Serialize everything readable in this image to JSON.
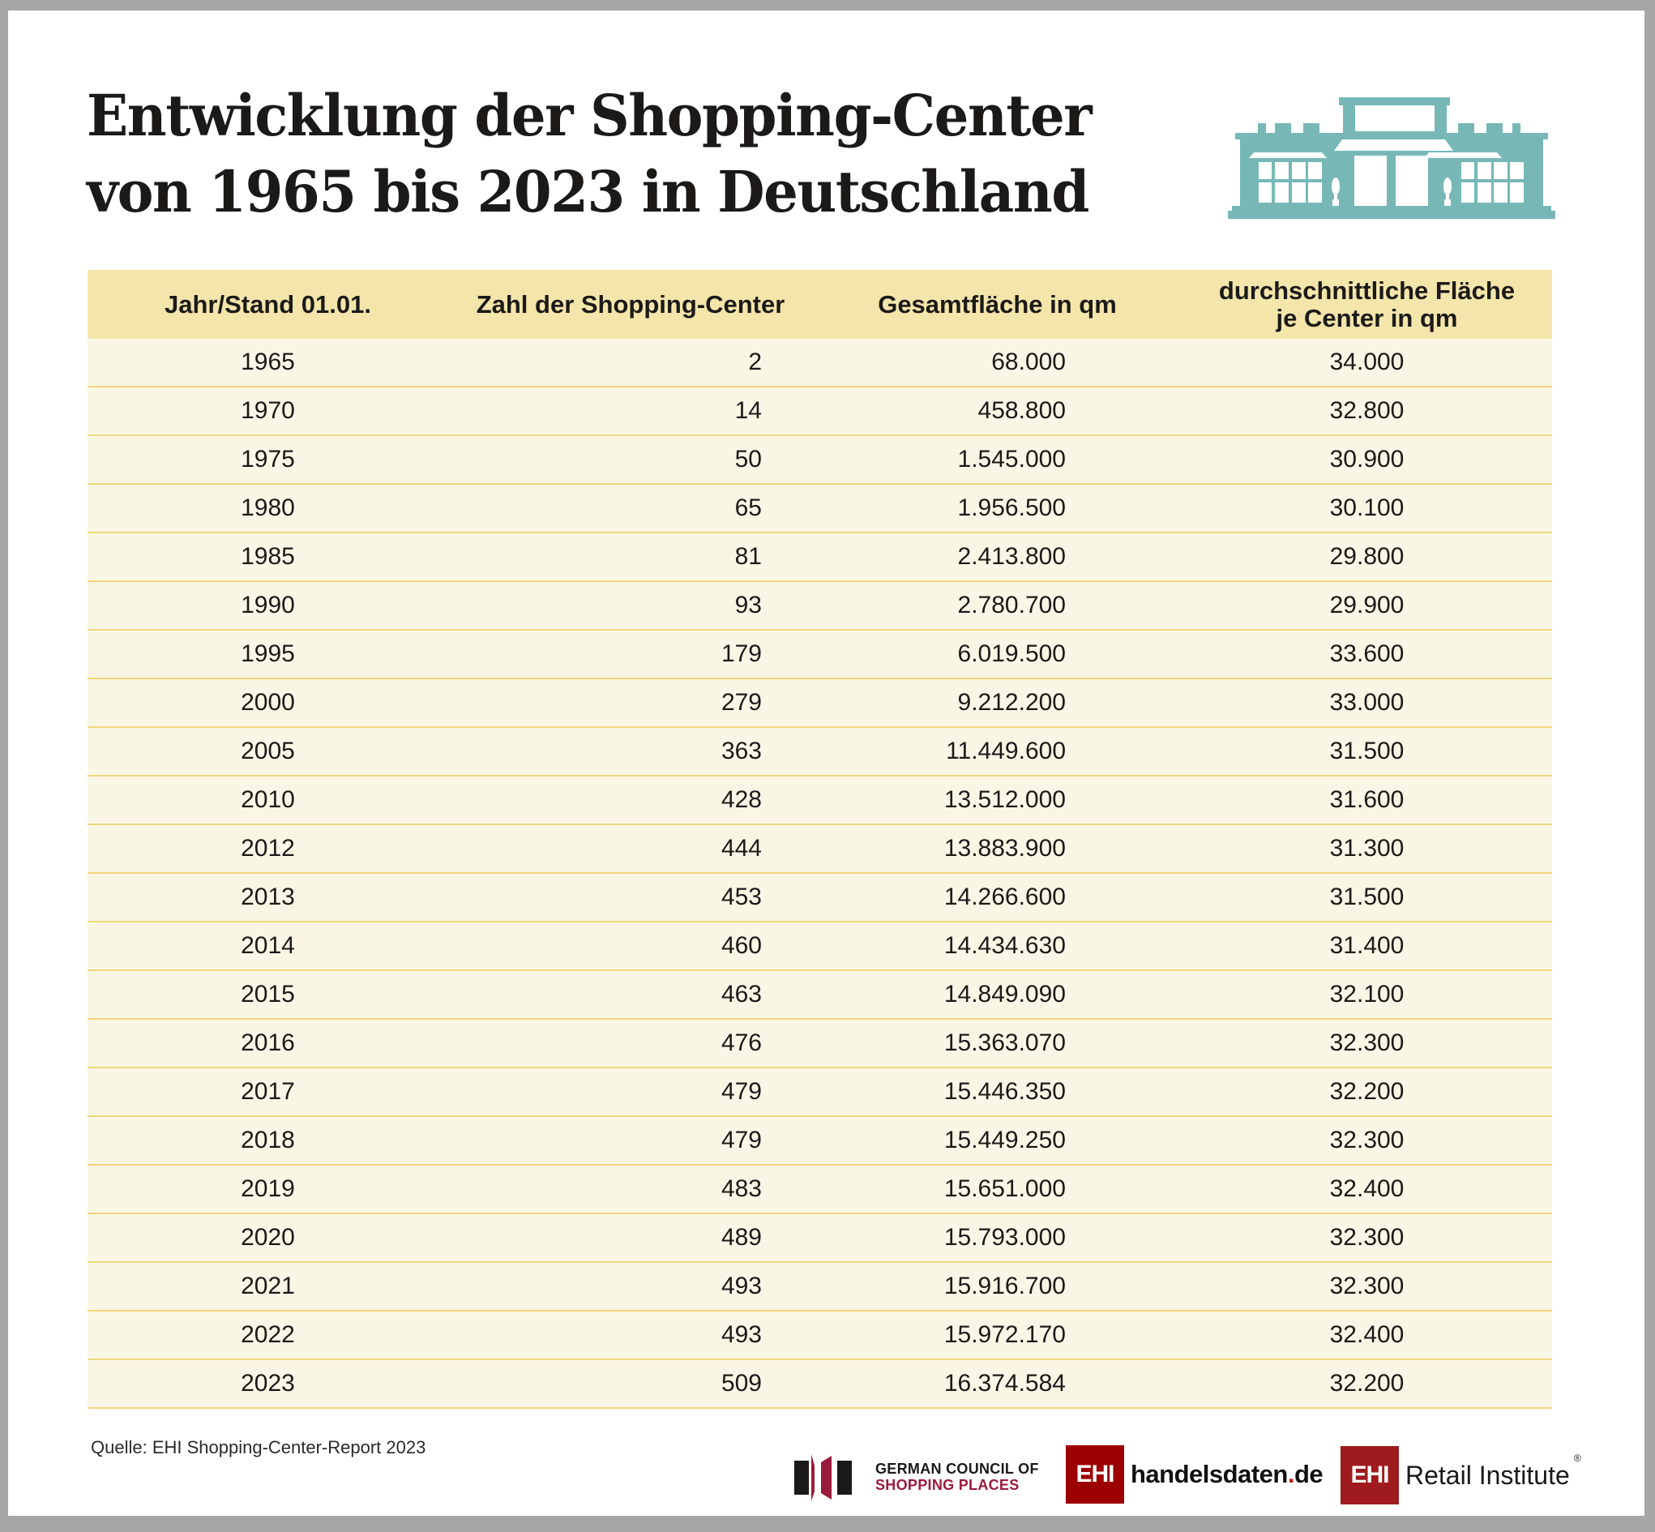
{
  "title": {
    "line1": "Entwicklung der Shopping-Center",
    "line2": "von 1965 bis 2023 in Deutschland"
  },
  "icons": {
    "header_icon": "shopping-mall-building-icon",
    "header_icon_color": "#77b8b7"
  },
  "colors": {
    "header_bg": "#f4e5ab",
    "row_bg": "#faf6e6",
    "row_divider": "#f0d77c",
    "frame": "#a5a6a5"
  },
  "table": {
    "headers": {
      "year": "Jahr/Stand 01.01.",
      "count": "Zahl der Shopping-Center",
      "total_area": "Gesamtfläche in qm",
      "avg_area_line1": "durchschnittliche Fläche",
      "avg_area_line2": "je Center in qm"
    },
    "rows": [
      {
        "year": "1965",
        "count": "2",
        "total_area": "68.000",
        "avg_area": "34.000"
      },
      {
        "year": "1970",
        "count": "14",
        "total_area": "458.800",
        "avg_area": "32.800"
      },
      {
        "year": "1975",
        "count": "50",
        "total_area": "1.545.000",
        "avg_area": "30.900"
      },
      {
        "year": "1980",
        "count": "65",
        "total_area": "1.956.500",
        "avg_area": "30.100"
      },
      {
        "year": "1985",
        "count": "81",
        "total_area": "2.413.800",
        "avg_area": "29.800"
      },
      {
        "year": "1990",
        "count": "93",
        "total_area": "2.780.700",
        "avg_area": "29.900"
      },
      {
        "year": "1995",
        "count": "179",
        "total_area": "6.019.500",
        "avg_area": "33.600"
      },
      {
        "year": "2000",
        "count": "279",
        "total_area": "9.212.200",
        "avg_area": "33.000"
      },
      {
        "year": "2005",
        "count": "363",
        "total_area": "11.449.600",
        "avg_area": "31.500"
      },
      {
        "year": "2010",
        "count": "428",
        "total_area": "13.512.000",
        "avg_area": "31.600"
      },
      {
        "year": "2012",
        "count": "444",
        "total_area": "13.883.900",
        "avg_area": "31.300"
      },
      {
        "year": "2013",
        "count": "453",
        "total_area": "14.266.600",
        "avg_area": "31.500"
      },
      {
        "year": "2014",
        "count": "460",
        "total_area": "14.434.630",
        "avg_area": "31.400"
      },
      {
        "year": "2015",
        "count": "463",
        "total_area": "14.849.090",
        "avg_area": "32.100"
      },
      {
        "year": "2016",
        "count": "476",
        "total_area": "15.363.070",
        "avg_area": "32.300"
      },
      {
        "year": "2017",
        "count": "479",
        "total_area": "15.446.350",
        "avg_area": "32.200"
      },
      {
        "year": "2018",
        "count": "479",
        "total_area": "15.449.250",
        "avg_area": "32.300"
      },
      {
        "year": "2019",
        "count": "483",
        "total_area": "15.651.000",
        "avg_area": "32.400"
      },
      {
        "year": "2020",
        "count": "489",
        "total_area": "15.793.000",
        "avg_area": "32.300"
      },
      {
        "year": "2021",
        "count": "493",
        "total_area": "15.916.700",
        "avg_area": "32.300"
      },
      {
        "year": "2022",
        "count": "493",
        "total_area": "15.972.170",
        "avg_area": "32.400"
      },
      {
        "year": "2023",
        "count": "509",
        "total_area": "16.374.584",
        "avg_area": "32.200"
      }
    ]
  },
  "footer": {
    "source": "Quelle: EHI Shopping-Center-Report 2023",
    "logos": {
      "gcsp_line1": "GERMAN COUNCIL OF",
      "gcsp_line2": "SHOPPING PLACES",
      "ehi_mark": "EHI",
      "handelsdaten_name": "handelsdaten",
      "handelsdaten_dot": ".",
      "handelsdaten_tld": "de",
      "retail_institute": "Retail Institute",
      "registered": "®"
    }
  }
}
